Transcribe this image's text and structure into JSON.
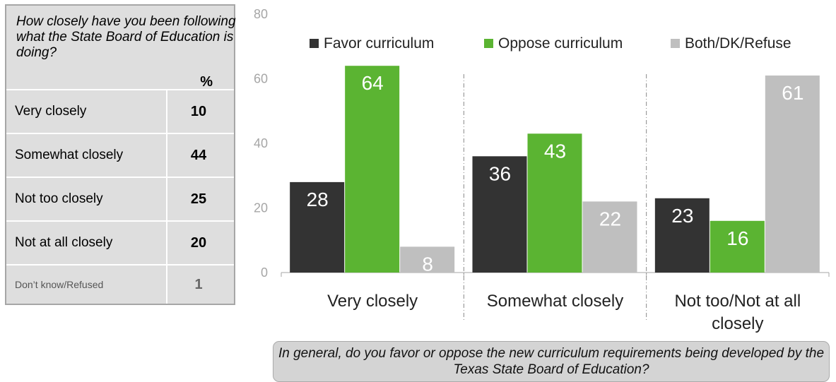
{
  "table": {
    "question": "How closely have you been following what the State Board of Education is doing?",
    "pct_header": "%",
    "rows": [
      {
        "label": "Very closely",
        "value": "10"
      },
      {
        "label": "Somewhat closely",
        "value": "44"
      },
      {
        "label": "Not too closely",
        "value": "25"
      },
      {
        "label": "Not at all closely",
        "value": "20"
      },
      {
        "label": "Don’t know/Refused",
        "value": "1"
      }
    ]
  },
  "chart_data": {
    "type": "bar",
    "categories": [
      [
        "Very closely"
      ],
      [
        "Somewhat closely"
      ],
      [
        "Not too/Not at all",
        "closely"
      ]
    ],
    "series": [
      {
        "name": "Favor curriculum",
        "values": [
          28,
          36,
          23
        ],
        "color": "#333333",
        "label_color": "#ffffff"
      },
      {
        "name": "Oppose curriculum",
        "values": [
          64,
          43,
          16
        ],
        "color": "#5bb432",
        "label_color": "#ffffff"
      },
      {
        "name": "Both/DK/Refuse",
        "values": [
          8,
          22,
          61
        ],
        "color": "#bfbfbf",
        "label_color": "#ffffff"
      }
    ],
    "ylim": [
      0,
      80
    ],
    "yticks": [
      0,
      20,
      40,
      60,
      80
    ],
    "legend_position": "top",
    "grid": false
  },
  "bottom_question": "In general, do you favor or oppose the new curriculum requirements being developed by the Texas State Board of Education?"
}
